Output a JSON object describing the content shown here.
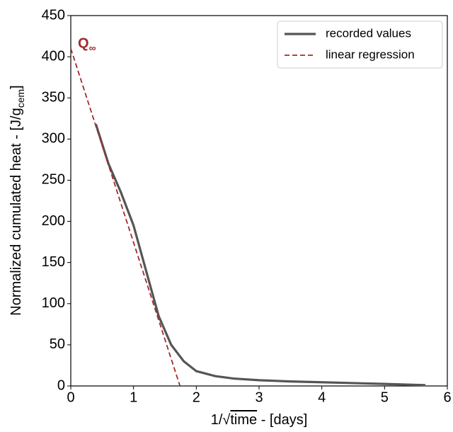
{
  "chart_data": {
    "type": "line",
    "xlabel": [
      "1/√",
      "time",
      " - [days]"
    ],
    "ylabel": [
      "Normalized cumulated heat - [J/g",
      "cem",
      "]"
    ],
    "xlim": [
      0,
      6
    ],
    "xticks": [
      0,
      1,
      2,
      3,
      4,
      5,
      6
    ],
    "ylim": [
      0,
      450
    ],
    "yticks": [
      0,
      50,
      100,
      150,
      200,
      250,
      300,
      350,
      400,
      450
    ],
    "grid": false,
    "legend": "upper right",
    "annotation": {
      "text": "Q",
      "sub": "∞"
    },
    "series": [
      {
        "name": "recorded values",
        "color": "#555555",
        "style": "solid",
        "x": [
          0.4,
          0.6,
          0.8,
          1.0,
          1.2,
          1.4,
          1.6,
          1.8,
          2.0,
          2.3,
          2.6,
          3.0,
          3.5,
          4.0,
          4.5,
          5.0,
          5.65
        ],
        "values": [
          318,
          270,
          235,
          195,
          140,
          85,
          50,
          30,
          18,
          12,
          9,
          7,
          5.5,
          4.5,
          3.5,
          2.5,
          1
        ]
      },
      {
        "name": "linear regression",
        "color": "#a52a2a",
        "style": "dashed",
        "x": [
          0,
          1.74
        ],
        "values": [
          410,
          0
        ]
      }
    ]
  }
}
